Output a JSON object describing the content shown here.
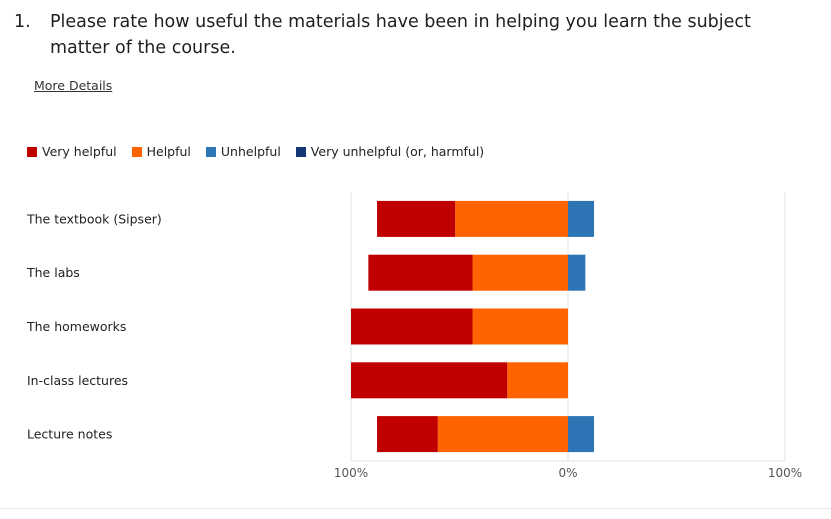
{
  "question": {
    "number": "1.",
    "text": "Please rate how useful the materials have been in helping you learn the subject matter of the course."
  },
  "more_details": "More Details",
  "chart_data": {
    "type": "bar",
    "orientation": "horizontal",
    "stacked": "diverging",
    "categories": [
      "The textbook (Sipser)",
      "The labs",
      "The homeworks",
      "In-class lectures",
      "Lecture notes"
    ],
    "series": [
      {
        "name": "Very helpful",
        "color": "#c00000",
        "side": "positive",
        "values": [
          36,
          48,
          56,
          72,
          28
        ]
      },
      {
        "name": "Helpful",
        "color": "#fe6300",
        "side": "positive",
        "values": [
          52,
          44,
          44,
          28,
          60
        ]
      },
      {
        "name": "Unhelpful",
        "color": "#2e75b6",
        "side": "negative",
        "values": [
          12,
          8,
          0,
          0,
          12
        ]
      },
      {
        "name": "Very unhelpful (or, harmful)",
        "color": "#12387a",
        "side": "negative",
        "values": [
          0,
          0,
          0,
          0,
          0
        ]
      }
    ],
    "x_tick_labels": [
      "100%",
      "0%",
      "100%"
    ],
    "xlim": [
      -100,
      100
    ],
    "legend_position": "top-left",
    "grid": true
  }
}
